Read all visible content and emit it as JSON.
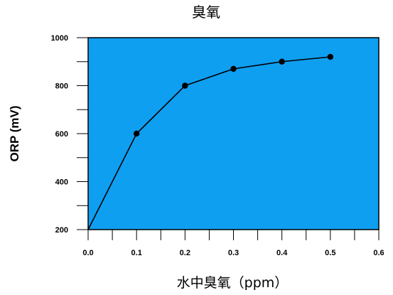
{
  "chart_data": {
    "type": "line",
    "title": "臭氧",
    "xlabel": "水中臭氧（ppm）",
    "ylabel": "ORP (mV)",
    "xlim": [
      0.0,
      0.6
    ],
    "ylim": [
      200,
      1000
    ],
    "x_ticks": [
      0.0,
      0.1,
      0.2,
      0.3,
      0.4,
      0.5,
      0.6
    ],
    "x_tick_labels": [
      "0.0",
      "0.1",
      "0.2",
      "0.3",
      "0.4",
      "0.5",
      "0.6"
    ],
    "y_ticks": [
      200,
      400,
      600,
      800,
      1000
    ],
    "y_tick_labels": [
      "200",
      "400",
      "600",
      "800",
      "1000"
    ],
    "grid": false,
    "legend": "none",
    "series": [
      {
        "x": [
          0.0,
          0.1,
          0.2,
          0.3,
          0.4,
          0.5
        ],
        "values": [
          200,
          600,
          800,
          870,
          900,
          920
        ],
        "marker_start": false
      }
    ],
    "colors": {
      "plot_background": "#0f9ff1",
      "line": "#000000",
      "marker": "#000000",
      "axis": "#000000"
    }
  }
}
